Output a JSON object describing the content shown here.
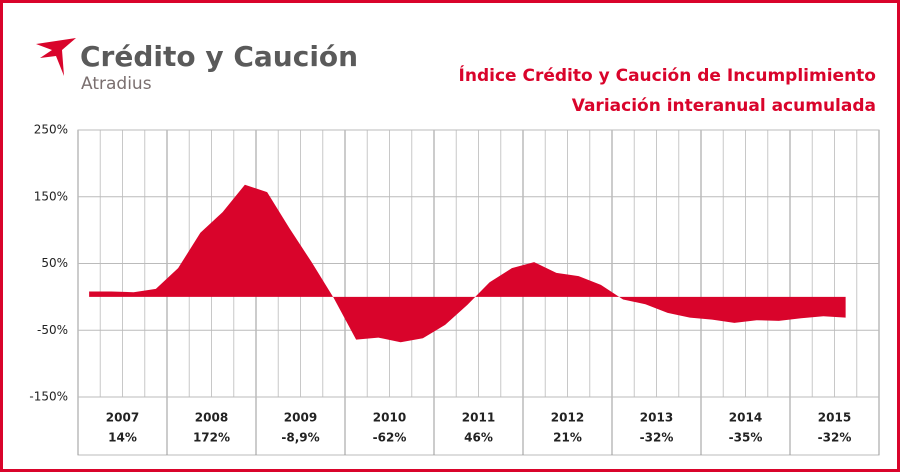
{
  "brand": {
    "name": "Crédito y Caución",
    "sub": "Atradius"
  },
  "chart_data": {
    "type": "area",
    "title": "Índice Crédito y Caución de Incumplimiento",
    "subtitle": "Variación interanual acumulada",
    "color": "#d9042b",
    "categories": [
      null,
      null,
      null,
      null,
      null,
      null,
      null,
      null,
      null,
      null,
      null,
      null,
      null,
      null,
      null,
      null,
      null,
      null,
      null,
      null,
      null,
      null,
      null,
      null,
      null,
      null,
      null,
      null,
      null,
      null,
      null,
      null,
      null,
      null,
      null,
      null
    ],
    "values": [
      8,
      8,
      7,
      12,
      43,
      96,
      127,
      168,
      157,
      103,
      52,
      -2,
      -64,
      -61,
      -68,
      -62,
      -42,
      -12,
      22,
      43,
      52,
      36,
      31,
      18,
      -4,
      -11,
      -24,
      -31,
      -34,
      -39,
      -35,
      -36,
      -32,
      -29,
      -31,
      null
    ],
    "ylim": [
      -150,
      250
    ],
    "yticks": [
      {
        "value": 250,
        "label": "250%"
      },
      {
        "value": 150,
        "label": "150%"
      },
      {
        "value": 50,
        "label": "50%"
      },
      {
        "value": -50,
        "label": "-50%"
      },
      {
        "value": -150,
        "label": "-150%"
      }
    ],
    "grid": true,
    "years": [
      "2007",
      "2008",
      "2009",
      "2010",
      "2011",
      "2012",
      "2013",
      "2014",
      "2015"
    ],
    "year_labels": [
      "14%",
      "172%",
      "-8,9%",
      "-62%",
      "46%",
      "21%",
      "-32%",
      "-35%",
      "-32%"
    ]
  }
}
